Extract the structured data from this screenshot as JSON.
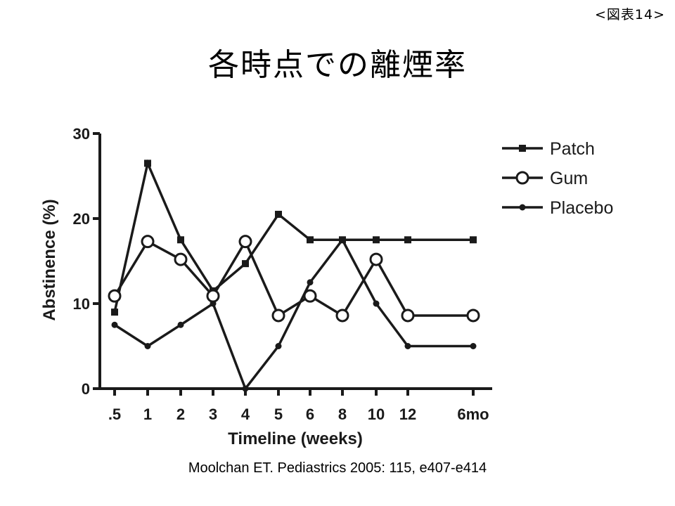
{
  "figure_label": "<図表14>",
  "title": "各時点での離煙率",
  "citation": "Moolchan ET. Pediastrics 2005: 115, e407-e414",
  "colors": {
    "line": "#1a1a1a",
    "background": "#ffffff"
  },
  "chart_data": {
    "type": "line",
    "title": "各時点での離煙率",
    "xlabel": "Timeline (weeks)",
    "ylabel": "Abstinence (%)",
    "categories": [
      ".5",
      "1",
      "2",
      "3",
      "4",
      "5",
      "6",
      "8",
      "10",
      "12",
      "6mo"
    ],
    "ylim": [
      0,
      30
    ],
    "yticks": [
      0,
      10,
      20,
      30
    ],
    "grid": false,
    "legend_position": "top-right",
    "series": [
      {
        "name": "Patch",
        "marker": "square",
        "values": [
          9,
          26.5,
          17.5,
          11.5,
          14.7,
          20.5,
          17.5,
          17.5,
          17.5,
          17.5,
          17.5
        ]
      },
      {
        "name": "Gum",
        "marker": "open-circle",
        "values": [
          10.9,
          17.3,
          15.2,
          10.9,
          17.3,
          8.6,
          10.9,
          8.6,
          15.2,
          8.6,
          8.6
        ]
      },
      {
        "name": "Placebo",
        "marker": "dot",
        "values": [
          7.5,
          5,
          7.5,
          10,
          0,
          5,
          12.5,
          17.5,
          10,
          5,
          5
        ]
      }
    ]
  }
}
